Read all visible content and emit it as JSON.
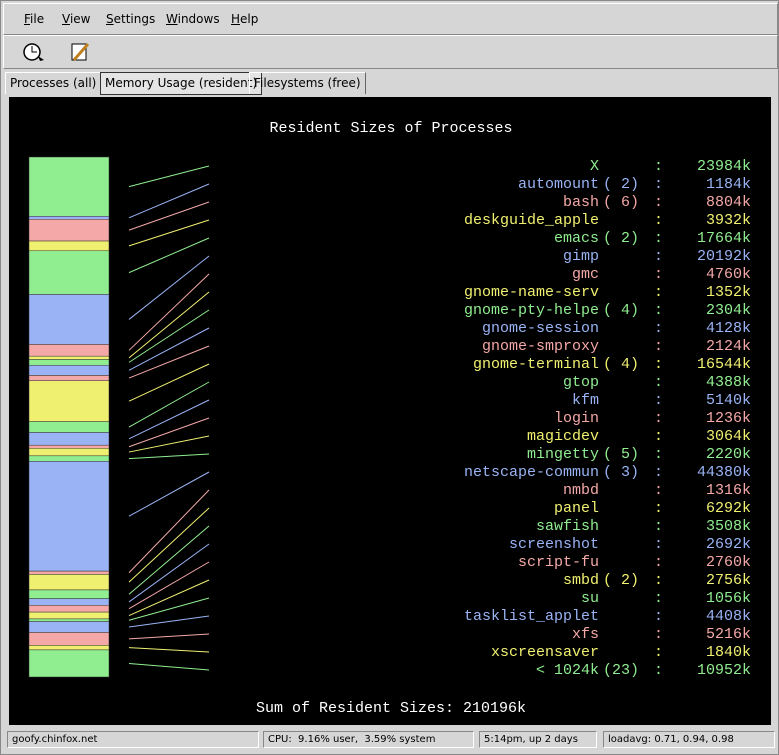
{
  "menu": [
    "File",
    "View",
    "Settings",
    "Windows",
    "Help"
  ],
  "tabs": [
    "Processes (all)",
    "Memory Usage (resident)",
    "Filesystems (free)"
  ],
  "panel": {
    "title": "Resident Sizes of Processes",
    "separator": ":",
    "colors": [
      "#90ee90",
      "#99b3f5",
      "#f5a8a8",
      "#f0f070"
    ],
    "processes": [
      {
        "name": "X",
        "value": 23984,
        "label": "23984k"
      },
      {
        "name": "automount",
        "count": "( 2)",
        "value": 1184,
        "label": "1184k"
      },
      {
        "name": "bash",
        "count": "( 6)",
        "value": 8804,
        "label": "8804k"
      },
      {
        "name": "deskguide_apple",
        "value": 3932,
        "label": "3932k"
      },
      {
        "name": "emacs",
        "count": "( 2)",
        "value": 17664,
        "label": "17664k"
      },
      {
        "name": "gimp",
        "value": 20192,
        "label": "20192k"
      },
      {
        "name": "gmc",
        "value": 4760,
        "label": "4760k"
      },
      {
        "name": "gnome-name-serv",
        "value": 1352,
        "label": "1352k"
      },
      {
        "name": "gnome-pty-helpe",
        "count": "( 4)",
        "value": 2304,
        "label": "2304k"
      },
      {
        "name": "gnome-session",
        "value": 4128,
        "label": "4128k"
      },
      {
        "name": "gnome-smproxy",
        "value": 2124,
        "label": "2124k"
      },
      {
        "name": "gnome-terminal",
        "count": "( 4)",
        "value": 16544,
        "label": "16544k"
      },
      {
        "name": "gtop",
        "value": 4388,
        "label": "4388k"
      },
      {
        "name": "kfm",
        "value": 5140,
        "label": "5140k"
      },
      {
        "name": "login",
        "value": 1236,
        "label": "1236k"
      },
      {
        "name": "magicdev",
        "value": 3064,
        "label": "3064k"
      },
      {
        "name": "mingetty",
        "count": "( 5)",
        "value": 2220,
        "label": "2220k"
      },
      {
        "name": "netscape-commun",
        "count": "( 3)",
        "value": 44380,
        "label": "44380k"
      },
      {
        "name": "nmbd",
        "value": 1316,
        "label": "1316k"
      },
      {
        "name": "panel",
        "value": 6292,
        "label": "6292k"
      },
      {
        "name": "sawfish",
        "value": 3508,
        "label": "3508k"
      },
      {
        "name": "screenshot",
        "value": 2692,
        "label": "2692k"
      },
      {
        "name": "script-fu",
        "value": 2760,
        "label": "2760k"
      },
      {
        "name": "smbd",
        "count": "( 2)",
        "value": 2756,
        "label": "2756k"
      },
      {
        "name": "su",
        "value": 1056,
        "label": "1056k"
      },
      {
        "name": "tasklist_applet",
        "value": 4408,
        "label": "4408k"
      },
      {
        "name": "xfs",
        "value": 5216,
        "label": "5216k"
      },
      {
        "name": "xscreensaver",
        "value": 1840,
        "label": "1840k"
      },
      {
        "name": "< 1024k",
        "count": "(23)",
        "value": 10952,
        "label": "10952k"
      }
    ],
    "sum": "Sum of Resident Sizes: 210196k"
  },
  "status": [
    "goofy.chinfox.net",
    "CPU:  9.16% user,  3.59% system",
    "5:14pm, up 2 days",
    "loadavg: 0.71, 0.94, 0.98"
  ]
}
